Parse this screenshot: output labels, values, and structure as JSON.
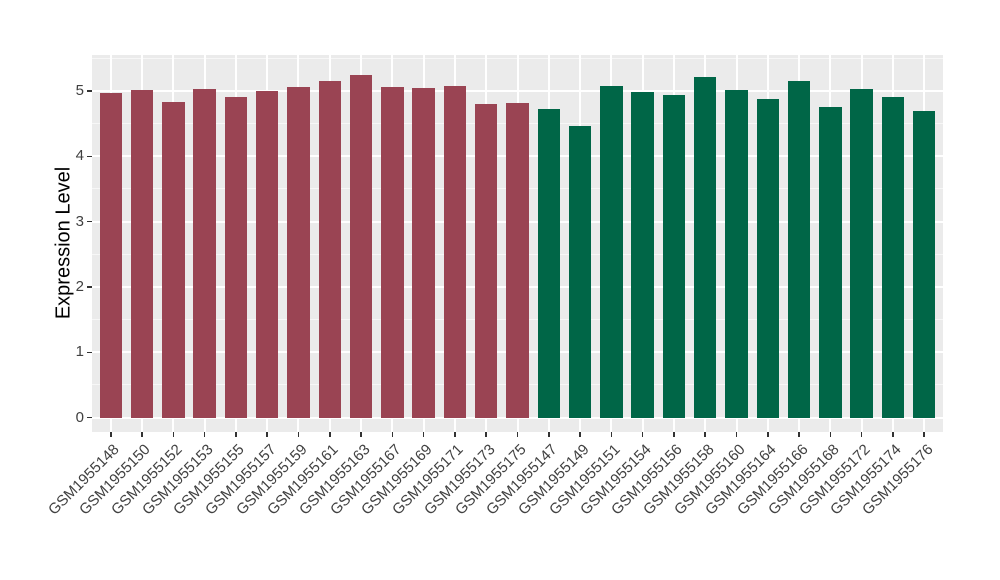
{
  "chart_data": {
    "type": "bar",
    "title": "",
    "xlabel": "",
    "ylabel": "Expression Level",
    "ylim": [
      -0.22,
      5.55
    ],
    "yticks": [
      0,
      1,
      2,
      3,
      4,
      5
    ],
    "yticks_minor": [
      0.5,
      1.5,
      2.5,
      3.5,
      4.5,
      5.5
    ],
    "grid": "white major and minor horizontal gridlines plus vertical major gridlines on gray panel",
    "legend_position": "none",
    "bar_width_fraction": 0.72,
    "panel_background": "#EBEBEB",
    "figure_background": "#FFFFFF",
    "axis_text_color": "#404040",
    "tick_color": "#333333",
    "groups": [
      {
        "name": "left-group-maroon",
        "color": "#9A4453",
        "bars": [
          {
            "label": "GSM1955148",
            "value": 4.97
          },
          {
            "label": "GSM1955150",
            "value": 5.01
          },
          {
            "label": "GSM1955152",
            "value": 4.83
          },
          {
            "label": "GSM1955153",
            "value": 5.03
          },
          {
            "label": "GSM1955155",
            "value": 4.91
          },
          {
            "label": "GSM1955157",
            "value": 5.0
          },
          {
            "label": "GSM1955159",
            "value": 5.06
          },
          {
            "label": "GSM1955161",
            "value": 5.15
          },
          {
            "label": "GSM1955163",
            "value": 5.24
          },
          {
            "label": "GSM1955167",
            "value": 5.06
          },
          {
            "label": "GSM1955169",
            "value": 5.05
          },
          {
            "label": "GSM1955171",
            "value": 5.07
          },
          {
            "label": "GSM1955173",
            "value": 4.8
          },
          {
            "label": "GSM1955175",
            "value": 4.81
          }
        ]
      },
      {
        "name": "right-group-green",
        "color": "#006647",
        "bars": [
          {
            "label": "GSM1955147",
            "value": 4.72
          },
          {
            "label": "GSM1955149",
            "value": 4.47
          },
          {
            "label": "GSM1955151",
            "value": 5.08
          },
          {
            "label": "GSM1955154",
            "value": 4.99
          },
          {
            "label": "GSM1955156",
            "value": 4.94
          },
          {
            "label": "GSM1955158",
            "value": 5.22
          },
          {
            "label": "GSM1955160",
            "value": 5.02
          },
          {
            "label": "GSM1955164",
            "value": 4.87
          },
          {
            "label": "GSM1955166",
            "value": 5.15
          },
          {
            "label": "GSM1955168",
            "value": 4.75
          },
          {
            "label": "GSM1955172",
            "value": 5.03
          },
          {
            "label": "GSM1955174",
            "value": 4.91
          },
          {
            "label": "GSM1955176",
            "value": 4.7
          }
        ]
      }
    ]
  }
}
